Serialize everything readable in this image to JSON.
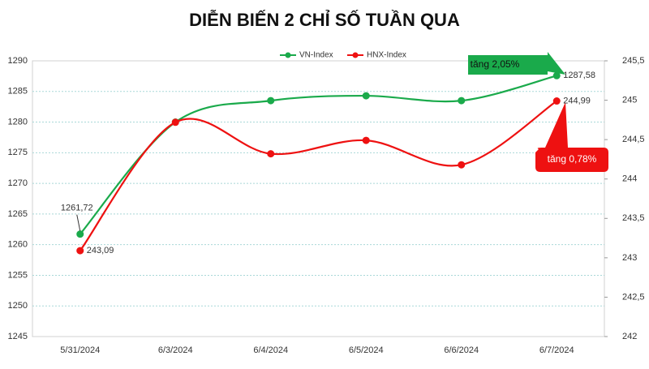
{
  "chart_data": {
    "type": "line",
    "title": "DIỄN BIẾN 2 CHỈ SỐ TUẦN QUA",
    "categories": [
      "5/31/2024",
      "6/3/2024",
      "6/4/2024",
      "6/5/2024",
      "6/6/2024",
      "6/7/2024"
    ],
    "series": [
      {
        "name": "VN-Index",
        "color": "#1aaa4b",
        "values": [
          1261.72,
          1280,
          1283.5,
          1284.3,
          1283.5,
          1287.58
        ],
        "value_labels": [
          "1261,72",
          null,
          null,
          null,
          null,
          "1287,58"
        ]
      },
      {
        "name": "HNX-Index",
        "color": "#ee1111",
        "axis": "y2",
        "values": [
          243.09,
          244.72,
          244.32,
          244.49,
          244.18,
          244.99
        ],
        "value_labels": [
          "243,09",
          null,
          null,
          null,
          null,
          "244,99"
        ]
      }
    ],
    "ylim": [
      1245,
      1290
    ],
    "yticks": [
      1245,
      1250,
      1255,
      1260,
      1265,
      1270,
      1275,
      1280,
      1285,
      1290
    ],
    "y2lim": [
      242,
      245.5
    ],
    "y2ticks": [
      242,
      {
        "value": 242.5,
        "label": "242,5"
      },
      243,
      {
        "value": 243.5,
        "label": "243,5"
      },
      244,
      {
        "value": 244.5,
        "label": "244,5"
      },
      245,
      {
        "value": 245.5,
        "label": "245,5"
      }
    ],
    "grid": true,
    "legend": "top",
    "annotations": [
      "tăng 2,05%",
      "tăng 0,78%"
    ]
  }
}
